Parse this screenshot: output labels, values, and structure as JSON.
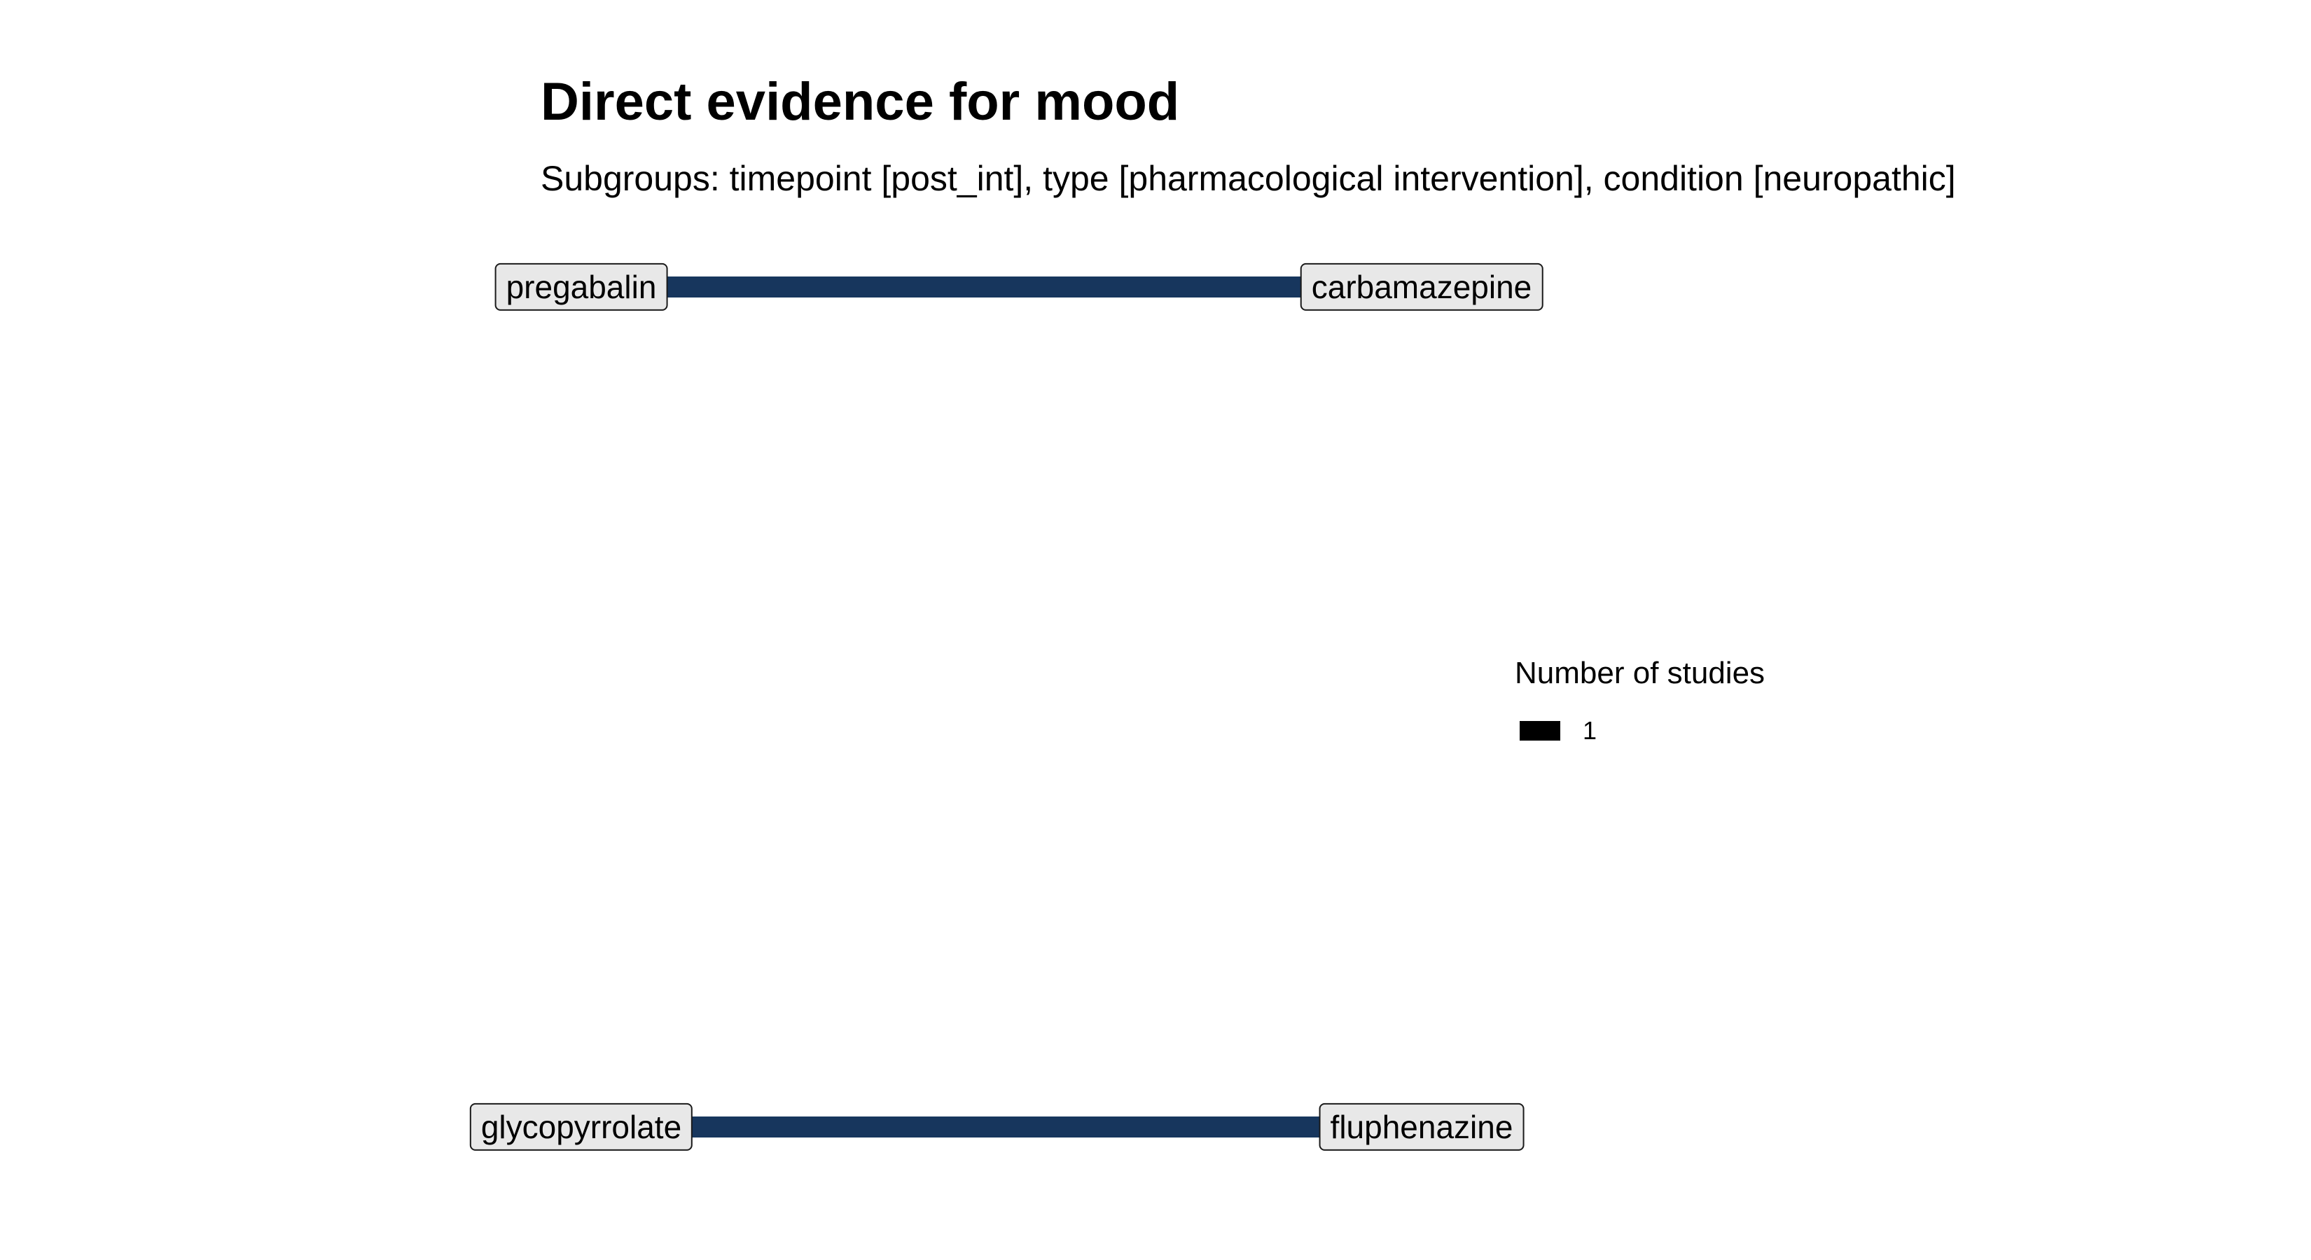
{
  "title": "Direct evidence for mood",
  "subtitle": "Subgroups: timepoint [post_int], type [pharmacological intervention], condition [neuropathic]",
  "edge_color": "#17365d",
  "nodes": [
    {
      "id": "pregabalin",
      "label": "pregabalin"
    },
    {
      "id": "carbamazepine",
      "label": "carbamazepine"
    },
    {
      "id": "glycopyrrolate",
      "label": "glycopyrrolate"
    },
    {
      "id": "fluphenazine",
      "label": "fluphenazine"
    }
  ],
  "edges": [
    {
      "from": "pregabalin",
      "to": "carbamazepine",
      "studies": 1
    },
    {
      "from": "glycopyrrolate",
      "to": "fluphenazine",
      "studies": 1
    }
  ],
  "legend": {
    "title": "Number of studies",
    "items": [
      {
        "label": "1",
        "color": "#000000"
      }
    ]
  }
}
